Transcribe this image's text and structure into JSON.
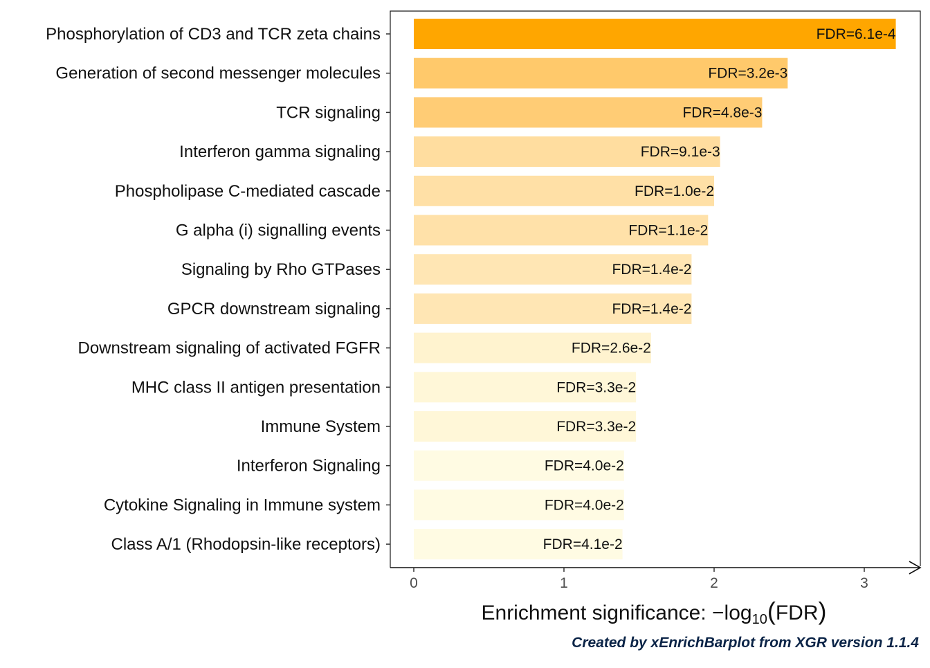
{
  "chart_data": {
    "type": "bar",
    "orientation": "horizontal",
    "categories": [
      "Phosphorylation of CD3 and TCR zeta chains",
      "Generation of second messenger molecules",
      "TCR signaling",
      "Interferon gamma signaling",
      "Phospholipase C-mediated cascade",
      "G alpha (i) signalling events",
      "Signaling by Rho GTPases",
      "GPCR downstream signaling",
      "Downstream signaling of activated FGFR",
      "MHC class II antigen presentation",
      "Immune System",
      "Interferon Signaling",
      "Cytokine Signaling in Immune system",
      "Class A/1 (Rhodopsin-like receptors)"
    ],
    "values": [
      3.21,
      2.49,
      2.32,
      2.04,
      2.0,
      1.96,
      1.85,
      1.85,
      1.58,
      1.48,
      1.48,
      1.4,
      1.4,
      1.39
    ],
    "bar_labels": [
      "FDR=6.1e-4",
      "FDR=3.2e-3",
      "FDR=4.8e-3",
      "FDR=9.1e-3",
      "FDR=1.0e-2",
      "FDR=1.1e-2",
      "FDR=1.4e-2",
      "FDR=1.4e-2",
      "FDR=2.6e-2",
      "FDR=3.3e-2",
      "FDR=3.3e-2",
      "FDR=4.0e-2",
      "FDR=4.0e-2",
      "FDR=4.1e-2"
    ],
    "colors": [
      "#ffa600",
      "#ffc96b",
      "#ffcc75",
      "#ffdd9f",
      "#ffe0a6",
      "#ffe1a9",
      "#ffe6b4",
      "#ffe6b4",
      "#fff3cf",
      "#fff7d8",
      "#fff7d8",
      "#fffbe3",
      "#fffbe3",
      "#fffbe3"
    ],
    "xticks": [
      0,
      1,
      2,
      3
    ],
    "xlim": [
      -0.15,
      3.37
    ],
    "xlabel_text": "Enrichment significance:",
    "xlabel_math": {
      "minus": "−",
      "log": "log",
      "base": "10",
      "open": "(",
      "arg": "FDR",
      "close": ")"
    },
    "grid": false
  },
  "footer": {
    "credit": "Created by xEnrichBarplot from XGR version 1.1.4"
  }
}
